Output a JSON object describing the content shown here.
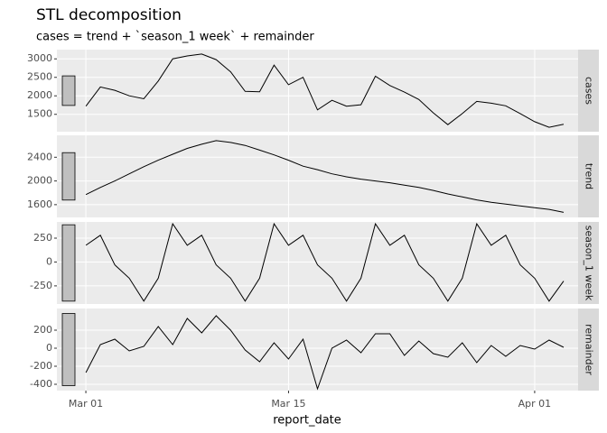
{
  "chart_data": {
    "type": "line",
    "title": "STL decomposition",
    "subtitle": "cases = trend + `season_1 week` + remainder",
    "xlabel": "report_date",
    "x": [
      "Mar 01",
      "Mar 02",
      "Mar 03",
      "Mar 04",
      "Mar 05",
      "Mar 06",
      "Mar 07",
      "Mar 08",
      "Mar 09",
      "Mar 10",
      "Mar 11",
      "Mar 12",
      "Mar 13",
      "Mar 14",
      "Mar 15",
      "Mar 16",
      "Mar 17",
      "Mar 18",
      "Mar 19",
      "Mar 20",
      "Mar 21",
      "Mar 22",
      "Mar 23",
      "Mar 24",
      "Mar 25",
      "Mar 26",
      "Mar 27",
      "Mar 28",
      "Mar 29",
      "Mar 30",
      "Mar 31",
      "Apr 01",
      "Apr 02",
      "Apr 03"
    ],
    "xlim": [
      "Feb 27",
      "Apr 04"
    ],
    "xticks": [
      "Mar 01",
      "Mar 15",
      "Apr 01"
    ],
    "grid": true,
    "color": "#000000",
    "scale_bar": 800,
    "panels": [
      {
        "strip": "cases",
        "ylim": [
          1030,
          3250
        ],
        "yticks": [
          1500,
          2000,
          2500,
          3000
        ],
        "values": [
          1720,
          2240,
          2150,
          2000,
          1920,
          2400,
          3000,
          3080,
          3130,
          2980,
          2650,
          2120,
          2110,
          2830,
          2300,
          2500,
          1620,
          1880,
          1720,
          1760,
          2530,
          2280,
          2100,
          1900,
          1540,
          1220,
          1520,
          1850,
          1800,
          1730,
          1520,
          1300,
          1150,
          1230
        ]
      },
      {
        "strip": "trend",
        "ylim": [
          1385,
          2770
        ],
        "yticks": [
          1600,
          2000,
          2400
        ],
        "values": [
          1770,
          1890,
          2000,
          2120,
          2240,
          2350,
          2450,
          2550,
          2620,
          2680,
          2650,
          2600,
          2520,
          2440,
          2350,
          2250,
          2190,
          2120,
          2070,
          2030,
          2000,
          1970,
          1930,
          1890,
          1840,
          1780,
          1730,
          1680,
          1640,
          1610,
          1580,
          1550,
          1520,
          1470
        ]
      },
      {
        "strip": "season_1 week",
        "ylim": [
          -440,
          420
        ],
        "yticks": [
          -250,
          0,
          250
        ],
        "values": [
          175,
          280,
          -30,
          -170,
          -410,
          -170,
          400,
          175,
          280,
          -30,
          -170,
          -410,
          -170,
          400,
          175,
          280,
          -30,
          -170,
          -410,
          -170,
          400,
          175,
          280,
          -30,
          -170,
          -410,
          -170,
          400,
          175,
          280,
          -30,
          -170,
          -410,
          -200
        ]
      },
      {
        "strip": "remainder",
        "ylim": [
          -470,
          440
        ],
        "yticks": [
          -400,
          -200,
          0,
          200
        ],
        "values": [
          -270,
          40,
          100,
          -30,
          20,
          240,
          40,
          330,
          170,
          360,
          200,
          -20,
          -150,
          60,
          -120,
          100,
          -450,
          0,
          90,
          -50,
          160,
          160,
          -80,
          80,
          -60,
          -100,
          60,
          -160,
          30,
          -90,
          30,
          -10,
          90,
          10
        ]
      }
    ]
  }
}
